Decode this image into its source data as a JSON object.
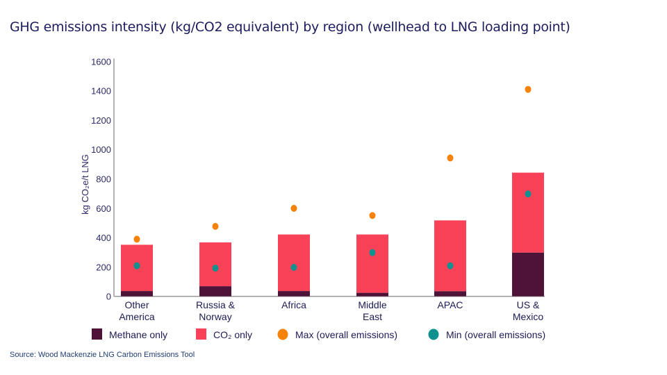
{
  "chart_data": {
    "type": "bar",
    "stacked": true,
    "title": "GHG emissions intensity (kg/CO2 equivalent) by region (wellhead to LNG loading point)",
    "ylabel": "kg CO₂e/t LNG",
    "xlabel": "",
    "ylim": [
      0,
      1600
    ],
    "yticks": [
      "0",
      "200",
      "400",
      "600",
      "800",
      "1000",
      "1200",
      "1400",
      "1600"
    ],
    "grid": false,
    "legend_placement": "bottom",
    "categories": [
      [
        "Other",
        "America"
      ],
      [
        "Russia &",
        "Norway"
      ],
      [
        "Africa"
      ],
      [
        "Middle",
        "East"
      ],
      [
        "APAC"
      ],
      [
        "US &",
        "Mexico"
      ]
    ],
    "series": [
      {
        "name": "Methane only",
        "kind": "bar",
        "color": "#4f1239",
        "values": [
          36,
          69,
          36,
          24,
          35,
          298
        ]
      },
      {
        "name": "CO₂ only",
        "kind": "bar",
        "color": "#f94157",
        "values": [
          315,
          298,
          385,
          397,
          482,
          544
        ]
      },
      {
        "name": "Max (overall emissions)",
        "kind": "point",
        "color": "#f5820b",
        "values": [
          389,
          476,
          599,
          550,
          942,
          1409
        ]
      },
      {
        "name": "Min (overall emissions)",
        "kind": "point",
        "color": "#10918f",
        "values": [
          208,
          192,
          197,
          298,
          208,
          697
        ]
      }
    ]
  },
  "source": "Source:  Wood Mackenzie LNG  Carbon Emissions Tool"
}
